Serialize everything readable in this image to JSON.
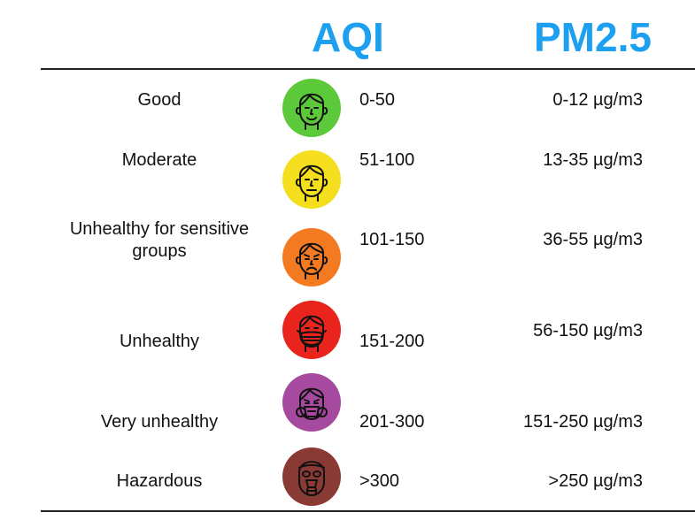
{
  "headers": {
    "aqi": "AQI",
    "pm": "PM2.5"
  },
  "levels": [
    {
      "category": "Good",
      "aqi": "0-50",
      "pm": "0-12 µg/m3",
      "color": "#5cc93a",
      "icon": "smiling-face-icon"
    },
    {
      "category": "Moderate",
      "aqi": "51-100",
      "pm": "13-35 µg/m3",
      "color": "#f5de1e",
      "icon": "neutral-face-icon"
    },
    {
      "category": "Unhealthy for sensitive groups",
      "aqi": "101-150",
      "pm": "36-55 µg/m3",
      "color": "#f47a22",
      "icon": "frowning-face-icon"
    },
    {
      "category": "Unhealthy",
      "aqi": "151-200",
      "pm": "56-150 µg/m3",
      "color": "#e8241c",
      "icon": "face-mask-icon"
    },
    {
      "category": "Very unhealthy",
      "aqi": "201-300",
      "pm": "151-250 µg/m3",
      "color": "#a54a9f",
      "icon": "respirator-mask-icon"
    },
    {
      "category": "Hazardous",
      "aqi": ">300",
      "pm": ">250 µg/m3",
      "color": "#8a3a35",
      "icon": "gas-mask-icon"
    }
  ]
}
